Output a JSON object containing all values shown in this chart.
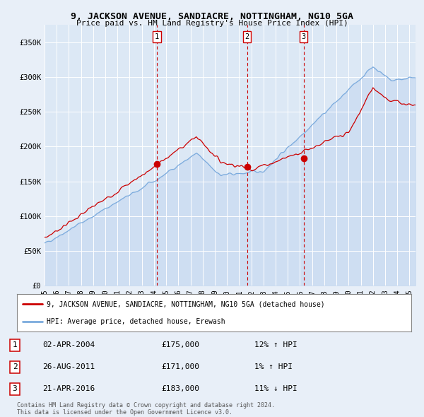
{
  "title": "9, JACKSON AVENUE, SANDIACRE, NOTTINGHAM, NG10 5GA",
  "subtitle": "Price paid vs. HM Land Registry's House Price Index (HPI)",
  "bg_color": "#e8eff8",
  "plot_bg_color": "#dce8f5",
  "transactions": [
    {
      "label": "1",
      "date": "02-APR-2004",
      "price": 175000,
      "hpi_pct": "12%",
      "hpi_dir": "↑"
    },
    {
      "label": "2",
      "date": "26-AUG-2011",
      "price": 171000,
      "hpi_pct": "1%",
      "hpi_dir": "↑"
    },
    {
      "label": "3",
      "date": "21-APR-2016",
      "price": 183000,
      "hpi_pct": "11%",
      "hpi_dir": "↓"
    }
  ],
  "transaction_years": [
    2004.25,
    2011.65,
    2016.3
  ],
  "transaction_prices": [
    175000,
    171000,
    183000
  ],
  "legend_line1": "9, JACKSON AVENUE, SANDIACRE, NOTTINGHAM, NG10 5GA (detached house)",
  "legend_line2": "HPI: Average price, detached house, Erewash",
  "footer_line1": "Contains HM Land Registry data © Crown copyright and database right 2024.",
  "footer_line2": "This data is licensed under the Open Government Licence v3.0.",
  "ylim": [
    0,
    375000
  ],
  "xlim_start": 1995.0,
  "xlim_end": 2025.5,
  "yticks": [
    0,
    50000,
    100000,
    150000,
    200000,
    250000,
    300000,
    350000
  ],
  "ytick_labels": [
    "£0",
    "£50K",
    "£100K",
    "£150K",
    "£200K",
    "£250K",
    "£300K",
    "£350K"
  ],
  "xtick_labels": [
    "95",
    "96",
    "97",
    "98",
    "99",
    "00",
    "01",
    "02",
    "03",
    "04",
    "05",
    "06",
    "07",
    "08",
    "09",
    "10",
    "11",
    "12",
    "13",
    "14",
    "15",
    "16",
    "17",
    "18",
    "19",
    "20",
    "21",
    "22",
    "23",
    "24",
    "25"
  ],
  "xticks": [
    1995,
    1996,
    1997,
    1998,
    1999,
    2000,
    2001,
    2002,
    2003,
    2004,
    2005,
    2006,
    2007,
    2008,
    2009,
    2010,
    2011,
    2012,
    2013,
    2014,
    2015,
    2016,
    2017,
    2018,
    2019,
    2020,
    2021,
    2022,
    2023,
    2024,
    2025
  ],
  "red_color": "#cc0000",
  "blue_color": "#7aaadd"
}
